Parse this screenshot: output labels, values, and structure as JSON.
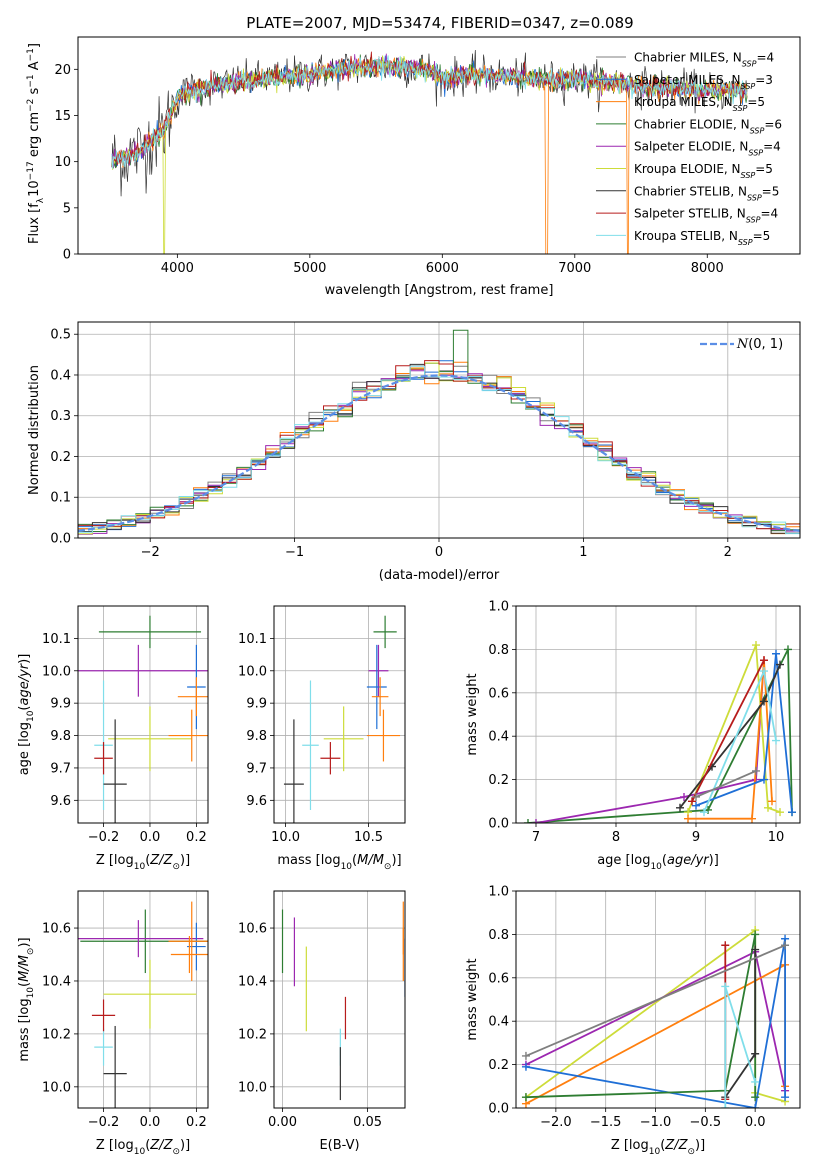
{
  "figure": {
    "title": "PLATE=2007, MJD=53474, FIBERID=0347, z=0.089",
    "colors": {
      "Chabrier MILES": "#7f7f7f",
      "Salpeter MILES": "#1f6fd6",
      "Kroupa MILES": "#ff7f0e",
      "Chabrier ELODIE": "#2e7d32",
      "Salpeter ELODIE": "#9c27b0",
      "Kroupa ELODIE": "#cddc39",
      "Chabrier STELIB": "#333333",
      "Salpeter STELIB": "#b71c1c",
      "Kroupa STELIB": "#80deea"
    }
  },
  "chart_data": [
    {
      "id": "spectrum",
      "type": "line",
      "title": "PLATE=2007, MJD=53474, FIBERID=0347, z=0.089",
      "xlabel": "wavelength [Angstrom, rest frame]",
      "ylabel": "Flux [f_λ 10^-17 erg cm^-2 s^-1 A^-1]",
      "xlim": [
        3250,
        8700
      ],
      "ylim": [
        0,
        23.5
      ],
      "xticks": [
        4000,
        5000,
        6000,
        7000,
        8000
      ],
      "yticks": [
        0,
        5,
        10,
        15,
        20
      ],
      "grid": false,
      "legend_position": "top-right",
      "legend": [
        "Chabrier MILES, N_SSP=4",
        "Salpeter MILES, N_SSP=3",
        "Kroupa MILES, N_SSP=5",
        "Chabrier ELODIE, N_SSP=6",
        "Salpeter ELODIE, N_SSP=4",
        "Kroupa ELODIE, N_SSP=5",
        "Chabrier STELIB, N_SSP=5",
        "Salpeter STELIB, N_SSP=4",
        "Kroupa STELIB, N_SSP=5"
      ],
      "continuum_x": [
        3500,
        3700,
        3900,
        4000,
        4100,
        4400,
        4800,
        5000,
        5300,
        5600,
        5900,
        6000,
        6200,
        6500,
        6800,
        7000,
        7300,
        7600,
        7900,
        8300
      ],
      "continuum_y": [
        10,
        11,
        13.5,
        17,
        17.8,
        18.5,
        19.2,
        19.5,
        20.2,
        20.3,
        20,
        19,
        19.4,
        19.2,
        18.8,
        19,
        18.6,
        18,
        17.8,
        17.6
      ]
    },
    {
      "id": "residuals",
      "type": "histogram",
      "xlabel": "(data-model)/error",
      "ylabel": "Normed distribution",
      "xlim": [
        -2.5,
        2.5
      ],
      "ylim": [
        0,
        0.53
      ],
      "xticks": [
        -2,
        -1,
        0,
        1,
        2
      ],
      "yticks": [
        0.0,
        0.1,
        0.2,
        0.3,
        0.4,
        0.5
      ],
      "grid": true,
      "legend_position": "top-right",
      "legend": [
        "N(0,1)"
      ],
      "bin_width": 0.1,
      "gaussian": {
        "mean": 0,
        "sigma": 1
      }
    },
    {
      "id": "age-vs-Z",
      "type": "scatter",
      "xlabel": "Z [log10(Z/Z⊙)]",
      "ylabel": "age [log10(age/yr)]",
      "xlim": [
        -0.31,
        0.25
      ],
      "ylim": [
        9.53,
        10.2
      ],
      "xticks": [
        -0.2,
        0.0,
        0.2
      ],
      "xticklabels": [
        "−0.2",
        "0.0",
        "0.2"
      ],
      "yticks": [
        9.6,
        9.7,
        9.8,
        9.9,
        10.0,
        10.1
      ],
      "grid": true,
      "points": [
        {
          "s": "Chabrier ELODIE",
          "x": 0.0,
          "y": 10.12,
          "ex": 0.22,
          "ey": 0.05
        },
        {
          "s": "Salpeter ELODIE",
          "x": -0.05,
          "y": 10.0,
          "ex": 0.35,
          "ey": 0.08
        },
        {
          "s": "Salpeter MILES",
          "x": 0.2,
          "y": 9.95,
          "ex": 0.04,
          "ey": 0.13
        },
        {
          "s": "Kroupa MILES",
          "x": 0.2,
          "y": 9.92,
          "ex": 0.08,
          "ey": 0.06
        },
        {
          "s": "Kroupa ELODIE",
          "x": 0.0,
          "y": 9.79,
          "ex": 0.18,
          "ey": 0.1
        },
        {
          "s": "Kroupa MILES",
          "x": 0.18,
          "y": 9.8,
          "ex": 0.1,
          "ey": 0.08
        },
        {
          "s": "Kroupa STELIB",
          "x": -0.2,
          "y": 9.77,
          "ex": 0.04,
          "ey": 0.2
        },
        {
          "s": "Salpeter STELIB",
          "x": -0.2,
          "y": 9.73,
          "ex": 0.04,
          "ey": 0.05
        },
        {
          "s": "Chabrier STELIB",
          "x": -0.15,
          "y": 9.65,
          "ex": 0.05,
          "ey": 0.2
        }
      ]
    },
    {
      "id": "age-vs-mass",
      "type": "scatter",
      "xlabel": "mass [log10(M/M⊙)]",
      "ylabel": "",
      "xlim": [
        9.93,
        10.72
      ],
      "ylim": [
        9.53,
        10.2
      ],
      "xticks": [
        10.0,
        10.5
      ],
      "yticks": [
        9.6,
        9.7,
        9.8,
        9.9,
        10.0,
        10.1
      ],
      "grid": true,
      "points": [
        {
          "s": "Chabrier ELODIE",
          "x": 10.6,
          "y": 10.12,
          "ex": 0.07,
          "ey": 0.05
        },
        {
          "s": "Salpeter ELODIE",
          "x": 10.56,
          "y": 10.0,
          "ex": 0.06,
          "ey": 0.08
        },
        {
          "s": "Salpeter MILES",
          "x": 10.55,
          "y": 9.95,
          "ex": 0.06,
          "ey": 0.13
        },
        {
          "s": "Kroupa MILES",
          "x": 10.57,
          "y": 9.92,
          "ex": 0.05,
          "ey": 0.06
        },
        {
          "s": "Kroupa ELODIE",
          "x": 10.35,
          "y": 9.79,
          "ex": 0.12,
          "ey": 0.1
        },
        {
          "s": "Kroupa MILES",
          "x": 10.59,
          "y": 9.8,
          "ex": 0.1,
          "ey": 0.08
        },
        {
          "s": "Kroupa STELIB",
          "x": 10.15,
          "y": 9.77,
          "ex": 0.05,
          "ey": 0.2
        },
        {
          "s": "Salpeter STELIB",
          "x": 10.27,
          "y": 9.73,
          "ex": 0.06,
          "ey": 0.05
        },
        {
          "s": "Chabrier STELIB",
          "x": 10.05,
          "y": 9.65,
          "ex": 0.06,
          "ey": 0.2
        }
      ]
    },
    {
      "id": "weight-vs-age",
      "type": "line",
      "xlabel": "age [log10(age/yr)]",
      "ylabel": "mass weight",
      "xlim": [
        6.75,
        10.3
      ],
      "ylim": [
        0,
        1.0
      ],
      "xticks": [
        7,
        8,
        9,
        10
      ],
      "yticks": [
        0.0,
        0.2,
        0.4,
        0.6,
        0.8,
        1.0
      ],
      "grid": true,
      "series": [
        {
          "s": "Chabrier ELODIE",
          "x": [
            6.9,
            9.15,
            10.15,
            10.2
          ],
          "y": [
            0.0,
            0.06,
            0.8,
            0.05
          ]
        },
        {
          "s": "Salpeter ELODIE",
          "x": [
            7.0,
            8.85,
            9.75,
            9.85
          ],
          "y": [
            0.0,
            0.12,
            0.2,
            0.75
          ]
        },
        {
          "s": "Kroupa ELODIE",
          "x": [
            8.9,
            9.75,
            9.9,
            10.05
          ],
          "y": [
            0.05,
            0.82,
            0.07,
            0.05
          ]
        },
        {
          "s": "Kroupa MILES",
          "x": [
            8.9,
            9.7,
            9.85,
            9.95
          ],
          "y": [
            0.02,
            0.02,
            0.75,
            0.1
          ]
        },
        {
          "s": "Salpeter MILES",
          "x": [
            9.0,
            9.85,
            10.0,
            10.2
          ],
          "y": [
            0.08,
            0.2,
            0.78,
            0.05
          ]
        },
        {
          "s": "Chabrier STELIB",
          "x": [
            8.8,
            9.2,
            9.85,
            10.05
          ],
          "y": [
            0.07,
            0.26,
            0.56,
            0.73
          ]
        },
        {
          "s": "Salpeter STELIB",
          "x": [
            8.95,
            9.85
          ],
          "y": [
            0.1,
            0.75
          ]
        },
        {
          "s": "Kroupa STELIB",
          "x": [
            9.1,
            9.85,
            10.0
          ],
          "y": [
            0.05,
            0.7,
            0.38
          ]
        },
        {
          "s": "Chabrier MILES",
          "x": [
            9.0,
            9.75
          ],
          "y": [
            0.12,
            0.24
          ]
        }
      ]
    },
    {
      "id": "mass-vs-Z",
      "type": "scatter",
      "xlabel": "Z [log10(Z/Z⊙)]",
      "ylabel": "mass [log10(M/M⊙)]",
      "xlim": [
        -0.31,
        0.25
      ],
      "ylim": [
        9.92,
        10.74
      ],
      "xticks": [
        -0.2,
        0.0,
        0.2
      ],
      "xticklabels": [
        "−0.2",
        "0.0",
        "0.2"
      ],
      "yticks": [
        10.0,
        10.2,
        10.4,
        10.6
      ],
      "grid": true,
      "points": [
        {
          "s": "Chabrier ELODIE",
          "x": -0.02,
          "y": 10.55,
          "ex": 0.28,
          "ey": 0.12
        },
        {
          "s": "Salpeter ELODIE",
          "x": -0.05,
          "y": 10.56,
          "ex": 0.28,
          "ey": 0.07
        },
        {
          "s": "Salpeter MILES",
          "x": 0.2,
          "y": 10.53,
          "ex": 0.04,
          "ey": 0.09
        },
        {
          "s": "Kroupa MILES",
          "x": 0.17,
          "y": 10.5,
          "ex": 0.08,
          "ey": 0.07
        },
        {
          "s": "Kroupa ELODIE",
          "x": 0.0,
          "y": 10.35,
          "ex": 0.2,
          "ey": 0.13
        },
        {
          "s": "Kroupa MILES",
          "x": 0.18,
          "y": 10.55,
          "ex": 0.1,
          "ey": 0.15
        },
        {
          "s": "Kroupa STELIB",
          "x": -0.2,
          "y": 10.15,
          "ex": 0.04,
          "ey": 0.07
        },
        {
          "s": "Salpeter STELIB",
          "x": -0.2,
          "y": 10.27,
          "ex": 0.05,
          "ey": 0.06
        },
        {
          "s": "Chabrier STELIB",
          "x": -0.15,
          "y": 10.05,
          "ex": 0.05,
          "ey": 0.18
        }
      ]
    },
    {
      "id": "mass-vs-ebv",
      "type": "scatter",
      "xlabel": "E(B-V)",
      "ylabel": "",
      "xlim": [
        -0.005,
        0.072
      ],
      "ylim": [
        9.92,
        10.74
      ],
      "xticks": [
        0.0,
        0.05
      ],
      "xticklabels": [
        "0.00",
        "0.05"
      ],
      "yticks": [
        10.0,
        10.2,
        10.4,
        10.6
      ],
      "grid": true,
      "points": [
        {
          "s": "Chabrier ELODIE",
          "x": 0.0,
          "y": 10.55,
          "ex": 0,
          "ey": 0.12
        },
        {
          "s": "Salpeter ELODIE",
          "x": 0.007,
          "y": 10.51,
          "ex": 0,
          "ey": 0.13
        },
        {
          "s": "Kroupa ELODIE",
          "x": 0.014,
          "y": 10.37,
          "ex": 0,
          "ey": 0.16
        },
        {
          "s": "Kroupa STELIB",
          "x": 0.034,
          "y": 10.15,
          "ex": 0,
          "ey": 0.07
        },
        {
          "s": "Chabrier STELIB",
          "x": 0.034,
          "y": 10.05,
          "ex": 0,
          "ey": 0.1
        },
        {
          "s": "Salpeter STELIB",
          "x": 0.037,
          "y": 10.26,
          "ex": 0,
          "ey": 0.08
        },
        {
          "s": "Kroupa MILES",
          "x": 0.071,
          "y": 10.5,
          "ex": 0,
          "ey": 0.1
        },
        {
          "s": "Salpeter MILES",
          "x": 0.072,
          "y": 10.45,
          "ex": 0,
          "ey": 0.11
        },
        {
          "s": "Kroupa MILES",
          "x": 0.071,
          "y": 10.6,
          "ex": 0,
          "ey": 0.1
        }
      ]
    },
    {
      "id": "weight-vs-Z",
      "type": "line",
      "xlabel": "Z [log10(Z/Z⊙)]",
      "ylabel": "mass weight",
      "xlim": [
        -2.4,
        0.45
      ],
      "ylim": [
        0,
        1.0
      ],
      "xticks": [
        -2.0,
        -1.5,
        -1.0,
        -0.5,
        0.0
      ],
      "xticklabels": [
        "−2.0",
        "−1.5",
        "−1.0",
        "−0.5",
        "0.0"
      ],
      "yticks": [
        0.0,
        0.2,
        0.4,
        0.6,
        0.8,
        1.0
      ],
      "grid": true,
      "series": [
        {
          "s": "Kroupa ELODIE",
          "x": [
            -2.3,
            0.0,
            0.0,
            0.3
          ],
          "y": [
            0.05,
            0.82,
            0.07,
            0.03
          ]
        },
        {
          "s": "Salpeter ELODIE",
          "x": [
            -2.3,
            0.0,
            0.3
          ],
          "y": [
            0.2,
            0.72,
            0.08
          ]
        },
        {
          "s": "Kroupa MILES",
          "x": [
            -2.3,
            0.3,
            0.3
          ],
          "y": [
            0.02,
            0.66,
            0.1
          ]
        },
        {
          "s": "Salpeter MILES",
          "x": [
            -2.3,
            0.0,
            0.3,
            0.3
          ],
          "y": [
            0.19,
            0.0,
            0.78,
            0.05
          ]
        },
        {
          "s": "Chabrier ELODIE",
          "x": [
            -2.3,
            -0.3,
            0.0,
            0.0
          ],
          "y": [
            0.05,
            0.08,
            0.8,
            0.05
          ]
        },
        {
          "s": "Chabrier STELIB",
          "x": [
            -0.3,
            0.0,
            0.0
          ],
          "y": [
            0.05,
            0.25,
            0.73
          ]
        },
        {
          "s": "Salpeter STELIB",
          "x": [
            -0.3,
            -0.3
          ],
          "y": [
            0.04,
            0.75
          ]
        },
        {
          "s": "Kroupa STELIB",
          "x": [
            -0.3,
            -0.3,
            0.0
          ],
          "y": [
            0.0,
            0.56,
            0.12
          ]
        },
        {
          "s": "Chabrier MILES",
          "x": [
            -2.3,
            0.3
          ],
          "y": [
            0.24,
            0.75
          ]
        }
      ]
    }
  ]
}
